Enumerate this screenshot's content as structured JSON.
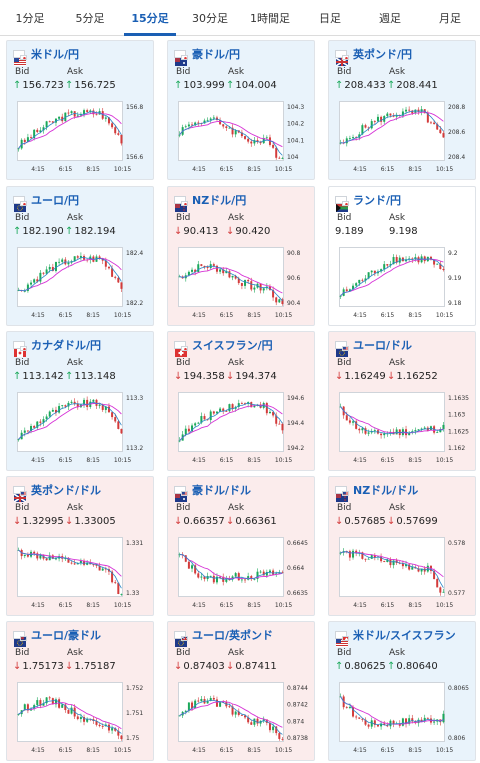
{
  "tabs": [
    {
      "label": "1分足",
      "active": false
    },
    {
      "label": "5分足",
      "active": false
    },
    {
      "label": "15分足",
      "active": true
    },
    {
      "label": "30分足",
      "active": false
    },
    {
      "label": "1時間足",
      "active": false
    },
    {
      "label": "日足",
      "active": false
    },
    {
      "label": "週足",
      "active": false
    },
    {
      "label": "月足",
      "active": false
    }
  ],
  "labels": {
    "bid": "Bid",
    "ask": "Ask"
  },
  "colors": {
    "up": "#1ba85a",
    "down": "#d33b3b",
    "accent": "#1a5fb4",
    "ma": "#d633d6",
    "ma_short": "#2a86c8"
  },
  "cards": [
    {
      "name": "米ドル/円",
      "flag": "us",
      "trend": "up",
      "bid": "156.723",
      "ask": "156.725",
      "ticks": [
        "156.8",
        "156.6"
      ],
      "times": [
        "4:15",
        "6:15",
        "8:15",
        "10:15"
      ],
      "mode": "updown"
    },
    {
      "name": "豪ドル/円",
      "flag": "au",
      "trend": "up",
      "bid": "103.999",
      "ask": "104.004",
      "ticks": [
        "104.3",
        "104.2",
        "104.1",
        "104"
      ],
      "times": [
        "4:15",
        "6:15",
        "8:15",
        "10:15"
      ],
      "mode": "wave"
    },
    {
      "name": "英ポンド/円",
      "flag": "gb",
      "trend": "up",
      "bid": "208.433",
      "ask": "208.441",
      "ticks": [
        "208.8",
        "208.6",
        "208.4"
      ],
      "times": [
        "4:15",
        "6:15",
        "8:15",
        "10:15"
      ],
      "mode": "updown"
    },
    {
      "name": "ユーロ/円",
      "flag": "eu",
      "trend": "up",
      "bid": "182.190",
      "ask": "182.194",
      "ticks": [
        "182.4",
        "182.2"
      ],
      "times": [
        "4:15",
        "6:15",
        "8:15",
        "10:15"
      ],
      "mode": "updown"
    },
    {
      "name": "NZドル/円",
      "flag": "nz",
      "trend": "down",
      "bid": "90.413",
      "ask": "90.420",
      "ticks": [
        "90.8",
        "90.6",
        "90.4"
      ],
      "times": [
        "4:15",
        "6:15",
        "8:15",
        "10:15"
      ],
      "mode": "wave"
    },
    {
      "name": "ランド/円",
      "flag": "za",
      "trend": "flat",
      "bid": "9.189",
      "ask": "9.198",
      "ticks": [
        "9.2",
        "9.19",
        "9.18"
      ],
      "times": [
        "4:15",
        "6:15",
        "8:15",
        "10:15"
      ],
      "mode": "rise"
    },
    {
      "name": "カナダドル/円",
      "flag": "ca",
      "trend": "up",
      "bid": "113.142",
      "ask": "113.148",
      "ticks": [
        "113.3",
        "113.2"
      ],
      "times": [
        "4:15",
        "6:15",
        "8:15",
        "10:15"
      ],
      "mode": "updown"
    },
    {
      "name": "スイスフラン/円",
      "flag": "ch",
      "trend": "down",
      "bid": "194.358",
      "ask": "194.374",
      "ticks": [
        "194.6",
        "194.4",
        "194.2"
      ],
      "times": [
        "4:15",
        "6:15",
        "8:15",
        "10:15"
      ],
      "mode": "updown"
    },
    {
      "name": "ユーロ/ドル",
      "flag": "eu-us",
      "trend": "down",
      "bid": "1.16249",
      "ask": "1.16252",
      "ticks": [
        "1.1635",
        "1.163",
        "1.1625",
        "1.162"
      ],
      "times": [
        "4:15",
        "6:15",
        "8:15",
        "10:15"
      ],
      "mode": "dip"
    },
    {
      "name": "英ポンド/ドル",
      "flag": "gb-us",
      "trend": "down",
      "bid": "1.32995",
      "ask": "1.33005",
      "ticks": [
        "1.331",
        "1.33"
      ],
      "times": [
        "4:15",
        "6:15",
        "8:15",
        "10:15"
      ],
      "mode": "fall"
    },
    {
      "name": "豪ドル/ドル",
      "flag": "au-us",
      "trend": "down",
      "bid": "0.66357",
      "ask": "0.66361",
      "ticks": [
        "0.6645",
        "0.664",
        "0.6635"
      ],
      "times": [
        "4:15",
        "6:15",
        "8:15",
        "10:15"
      ],
      "mode": "dip"
    },
    {
      "name": "NZドル/ドル",
      "flag": "nz-us",
      "trend": "down",
      "bid": "0.57685",
      "ask": "0.57699",
      "ticks": [
        "0.578",
        "0.577"
      ],
      "times": [
        "4:15",
        "6:15",
        "8:15",
        "10:15"
      ],
      "mode": "fall"
    },
    {
      "name": "ユーロ/豪ドル",
      "flag": "eu-au",
      "trend": "down",
      "bid": "1.75173",
      "ask": "1.75187",
      "ticks": [
        "1.752",
        "1.751",
        "1.75"
      ],
      "times": [
        "4:15",
        "6:15",
        "8:15",
        "10:15"
      ],
      "mode": "wave"
    },
    {
      "name": "ユーロ/英ポンド",
      "flag": "eu-gb",
      "trend": "down",
      "bid": "0.87403",
      "ask": "0.87411",
      "ticks": [
        "0.8744",
        "0.8742",
        "0.874",
        "0.8738"
      ],
      "times": [
        "4:15",
        "6:15",
        "8:15",
        "10:15"
      ],
      "mode": "wave"
    },
    {
      "name": "米ドル/スイスフラン",
      "flag": "us-ch",
      "trend": "up",
      "bid": "0.80625",
      "ask": "0.80640",
      "ticks": [
        "0.8065",
        "0.806"
      ],
      "times": [
        "4:15",
        "6:15",
        "8:15",
        "10:15"
      ],
      "mode": "dip"
    }
  ]
}
